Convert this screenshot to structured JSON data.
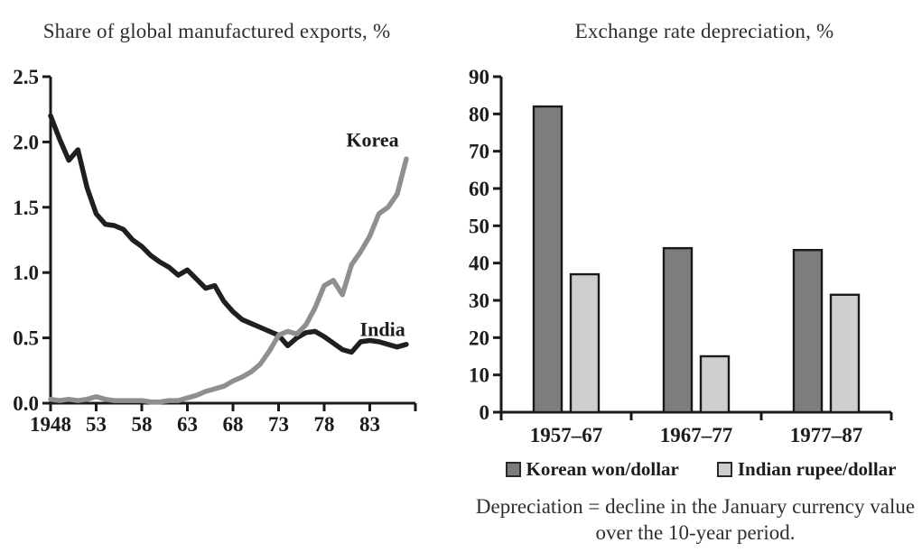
{
  "figure": {
    "background": "#ffffff",
    "text_color": "#2e2e2e",
    "axis_color": "#1a1a1a"
  },
  "chart_data": [
    {
      "type": "line",
      "title": "Share of global manufactured exports, %",
      "xlabel": "",
      "ylabel": "",
      "xlim": [
        1948,
        1988
      ],
      "ylim": [
        0,
        2.5
      ],
      "yticks": [
        "0.0",
        "0.5",
        "1.0",
        "1.5",
        "2.0",
        "2.5"
      ],
      "xticks": [
        {
          "year": 1948,
          "label": "1948"
        },
        {
          "year": 1953,
          "label": "53"
        },
        {
          "year": 1958,
          "label": "58"
        },
        {
          "year": 1963,
          "label": "63"
        },
        {
          "year": 1968,
          "label": "68"
        },
        {
          "year": 1973,
          "label": "73"
        },
        {
          "year": 1978,
          "label": "78"
        },
        {
          "year": 1983,
          "label": "83"
        }
      ],
      "grid": false,
      "x_years": [
        1948,
        1949,
        1950,
        1951,
        1952,
        1953,
        1954,
        1955,
        1956,
        1957,
        1958,
        1959,
        1960,
        1961,
        1962,
        1963,
        1964,
        1965,
        1966,
        1967,
        1968,
        1969,
        1970,
        1971,
        1972,
        1973,
        1974,
        1975,
        1976,
        1977,
        1978,
        1979,
        1980,
        1981,
        1982,
        1983,
        1984,
        1985,
        1986,
        1987
      ],
      "series": [
        {
          "name": "India",
          "color": "#1f1f1f",
          "values": [
            2.2,
            2.02,
            1.86,
            1.94,
            1.65,
            1.45,
            1.37,
            1.36,
            1.33,
            1.25,
            1.2,
            1.13,
            1.08,
            1.04,
            0.98,
            1.02,
            0.95,
            0.88,
            0.9,
            0.78,
            0.7,
            0.64,
            0.61,
            0.58,
            0.55,
            0.52,
            0.44,
            0.5,
            0.54,
            0.55,
            0.51,
            0.46,
            0.41,
            0.39,
            0.47,
            0.48,
            0.47,
            0.45,
            0.43,
            0.45
          ]
        },
        {
          "name": "Korea",
          "color": "#8f8f8f",
          "values": [
            0.03,
            0.02,
            0.03,
            0.02,
            0.03,
            0.05,
            0.03,
            0.02,
            0.02,
            0.02,
            0.02,
            0.01,
            0.01,
            0.02,
            0.02,
            0.04,
            0.06,
            0.09,
            0.11,
            0.13,
            0.17,
            0.2,
            0.24,
            0.3,
            0.4,
            0.52,
            0.55,
            0.53,
            0.6,
            0.73,
            0.9,
            0.94,
            0.83,
            1.06,
            1.16,
            1.28,
            1.45,
            1.5,
            1.6,
            1.87
          ]
        }
      ],
      "annotations": [
        {
          "text": "Korea",
          "year": 1983.3,
          "value": 2.02
        },
        {
          "text": "India",
          "year": 1984.4,
          "value": 0.57
        }
      ],
      "legend_position": "inline-annotations"
    },
    {
      "type": "bar",
      "title": "Exchange rate depreciation, %",
      "xlabel": "",
      "ylabel": "",
      "ylim": [
        0,
        90
      ],
      "yticks": [
        "0",
        "10",
        "20",
        "30",
        "40",
        "50",
        "60",
        "70",
        "80",
        "90"
      ],
      "grid": false,
      "categories": [
        "1957–67",
        "1967–77",
        "1977–87"
      ],
      "series": [
        {
          "name": "Korean won/dollar",
          "color": "#7d7d7d",
          "values": [
            82,
            44,
            43.5
          ]
        },
        {
          "name": "Indian rupee/dollar",
          "color": "#cecece",
          "values": [
            37,
            15,
            31.5
          ]
        }
      ],
      "legend_position": "bottom",
      "caption": "Depreciation = decline in the January currency value over the 10-year period."
    }
  ]
}
